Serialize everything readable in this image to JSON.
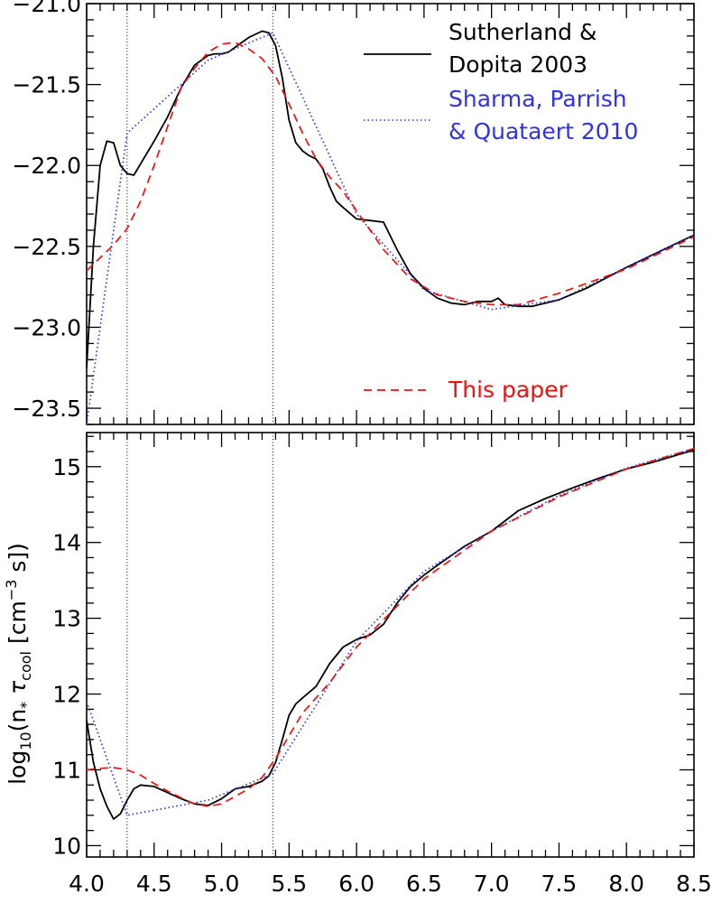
{
  "chart_data": [
    {
      "type": "line",
      "panel": "top",
      "xlim": [
        4.0,
        8.5
      ],
      "ylim": [
        -23.6,
        -21.0
      ],
      "y_ticks": [
        -21.0,
        -21.5,
        -22.0,
        -22.5,
        -23.0,
        -23.5
      ],
      "y_tick_labels": [
        "−21.0",
        "−21.5",
        "−22.0",
        "−22.5",
        "−23.0",
        "−23.5"
      ],
      "vlines": [
        4.3,
        5.38
      ],
      "legend": {
        "placement": "top-right",
        "entries": [
          {
            "line1": "Sutherland &",
            "line2": "Dopita 2003"
          },
          {
            "line1": "Sharma, Parrish",
            "line2": "& Quataert 2010"
          },
          {
            "line1": "This paper",
            "line2": ""
          }
        ]
      },
      "series": [
        {
          "name": "Sutherland & Dopita 2003",
          "color": "#000000",
          "style": "solid",
          "x": [
            4.0,
            4.05,
            4.1,
            4.15,
            4.2,
            4.25,
            4.3,
            4.35,
            4.4,
            4.45,
            4.5,
            4.6,
            4.7,
            4.8,
            4.9,
            4.95,
            5.0,
            5.05,
            5.1,
            5.2,
            5.3,
            5.35,
            5.4,
            5.45,
            5.5,
            5.55,
            5.6,
            5.65,
            5.7,
            5.75,
            5.8,
            5.85,
            5.9,
            6.0,
            6.1,
            6.2,
            6.3,
            6.4,
            6.5,
            6.6,
            6.7,
            6.8,
            6.9,
            7.0,
            7.05,
            7.1,
            7.2,
            7.3,
            7.5,
            7.7,
            8.0,
            8.5
          ],
          "y": [
            -23.25,
            -22.5,
            -22.0,
            -21.85,
            -21.86,
            -22.0,
            -22.05,
            -22.06,
            -21.99,
            -21.92,
            -21.85,
            -21.7,
            -21.52,
            -21.38,
            -21.32,
            -21.31,
            -21.31,
            -21.3,
            -21.27,
            -21.21,
            -21.17,
            -21.18,
            -21.26,
            -21.46,
            -21.72,
            -21.86,
            -21.91,
            -21.94,
            -21.96,
            -22.02,
            -22.13,
            -22.22,
            -22.26,
            -22.33,
            -22.34,
            -22.35,
            -22.52,
            -22.67,
            -22.76,
            -22.82,
            -22.85,
            -22.86,
            -22.84,
            -22.84,
            -22.82,
            -22.86,
            -22.87,
            -22.87,
            -22.83,
            -22.76,
            -22.63,
            -22.43
          ]
        },
        {
          "name": "Sharma, Parrish & Quataert 2010",
          "color": "#3333dd",
          "style": "dotted",
          "x": [
            4.0,
            4.3,
            4.9,
            5.38,
            6.0,
            6.5,
            7.0,
            7.5,
            8.0,
            8.5
          ],
          "y": [
            -23.6,
            -21.8,
            -21.35,
            -21.18,
            -22.3,
            -22.77,
            -22.89,
            -22.83,
            -22.63,
            -22.43
          ]
        },
        {
          "name": "This paper",
          "color": "#ee1111",
          "style": "dashed",
          "x": [
            4.0,
            4.1,
            4.2,
            4.3,
            4.4,
            4.5,
            4.6,
            4.7,
            4.8,
            4.9,
            5.0,
            5.1,
            5.2,
            5.3,
            5.4,
            5.5,
            5.6,
            5.7,
            5.8,
            5.9,
            6.0,
            6.1,
            6.2,
            6.4,
            6.6,
            6.8,
            7.0,
            7.2,
            7.5,
            8.0,
            8.5
          ],
          "y": [
            -22.65,
            -22.57,
            -22.49,
            -22.39,
            -22.22,
            -22.0,
            -21.76,
            -21.52,
            -21.4,
            -21.3,
            -21.25,
            -21.24,
            -21.28,
            -21.34,
            -21.45,
            -21.62,
            -21.8,
            -21.96,
            -22.07,
            -22.16,
            -22.28,
            -22.4,
            -22.52,
            -22.7,
            -22.8,
            -22.84,
            -22.86,
            -22.86,
            -22.79,
            -22.64,
            -22.44
          ]
        }
      ]
    },
    {
      "type": "line",
      "panel": "bottom",
      "xlim": [
        4.0,
        8.5
      ],
      "ylim": [
        9.85,
        15.45
      ],
      "y_ticks": [
        10,
        11,
        12,
        13,
        14,
        15
      ],
      "y_tick_labels": [
        "10",
        "11",
        "12",
        "13",
        "14",
        "15"
      ],
      "x_ticks": [
        4.0,
        4.5,
        5.0,
        5.5,
        6.0,
        6.5,
        7.0,
        7.5,
        8.0,
        8.5
      ],
      "x_tick_labels": [
        "4.0",
        "4.5",
        "5.0",
        "5.5",
        "6.0",
        "6.5",
        "7.0",
        "7.5",
        "8.0",
        "8.5"
      ],
      "ylabel": {
        "pre": "log",
        "sub1": "10",
        "mid": "(n",
        "sub2": "*",
        "tau": " τ",
        "sub3": "cool",
        "post1": " [cm",
        "sup": "−3",
        "post2": " s])"
      },
      "vlines": [
        4.3,
        5.38
      ],
      "series": [
        {
          "name": "Sutherland & Dopita 2003",
          "color": "#000000",
          "style": "solid",
          "x": [
            4.0,
            4.05,
            4.1,
            4.15,
            4.2,
            4.25,
            4.3,
            4.35,
            4.4,
            4.5,
            4.6,
            4.7,
            4.8,
            4.9,
            5.0,
            5.1,
            5.2,
            5.3,
            5.35,
            5.4,
            5.45,
            5.5,
            5.55,
            5.6,
            5.7,
            5.8,
            5.9,
            6.0,
            6.1,
            6.2,
            6.3,
            6.4,
            6.5,
            6.6,
            6.8,
            7.0,
            7.2,
            7.4,
            7.6,
            7.8,
            8.0,
            8.2,
            8.5
          ],
          "y": [
            11.65,
            11.1,
            10.75,
            10.52,
            10.35,
            10.42,
            10.6,
            10.75,
            10.8,
            10.78,
            10.7,
            10.62,
            10.55,
            10.53,
            10.62,
            10.75,
            10.78,
            10.85,
            10.92,
            11.1,
            11.4,
            11.72,
            11.87,
            11.95,
            12.1,
            12.4,
            12.62,
            12.72,
            12.78,
            12.92,
            13.2,
            13.42,
            13.57,
            13.7,
            13.95,
            14.15,
            14.42,
            14.58,
            14.72,
            14.85,
            14.97,
            15.06,
            15.22
          ]
        },
        {
          "name": "Sharma, Parrish & Quataert 2010",
          "color": "#3333dd",
          "style": "dotted",
          "x": [
            4.0,
            4.3,
            4.9,
            5.38,
            6.0,
            6.5,
            7.0,
            7.5,
            8.0,
            8.5
          ],
          "y": [
            11.9,
            10.4,
            10.6,
            10.95,
            12.7,
            13.62,
            14.15,
            14.62,
            14.98,
            15.24
          ]
        },
        {
          "name": "This paper",
          "color": "#ee1111",
          "style": "dashed",
          "x": [
            4.0,
            4.1,
            4.2,
            4.3,
            4.4,
            4.5,
            4.6,
            4.7,
            4.8,
            4.9,
            5.0,
            5.1,
            5.2,
            5.3,
            5.4,
            5.5,
            5.6,
            5.7,
            5.8,
            6.0,
            6.2,
            6.5,
            7.0,
            7.5,
            8.0,
            8.5
          ],
          "y": [
            11.0,
            11.02,
            11.03,
            11.0,
            10.93,
            10.82,
            10.72,
            10.63,
            10.55,
            10.52,
            10.55,
            10.65,
            10.75,
            10.9,
            11.15,
            11.45,
            11.75,
            11.95,
            12.15,
            12.62,
            12.98,
            13.52,
            14.15,
            14.6,
            14.97,
            15.24
          ]
        }
      ]
    }
  ]
}
